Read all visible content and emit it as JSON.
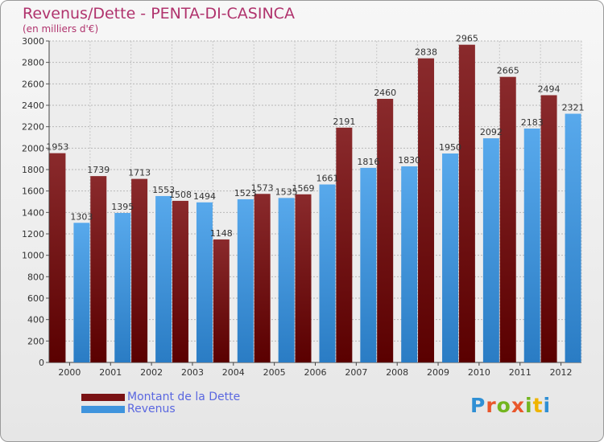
{
  "title": "Revenus/Dette - PENTA-DI-CASINCA",
  "subtitle": "(en milliers d'€)",
  "brand": {
    "letters": [
      "P",
      "r",
      "o",
      "x",
      "i",
      "t",
      "i"
    ],
    "colors": [
      "#2f8fd4",
      "#e9562b",
      "#73b51f",
      "#e9562b",
      "#73b51f",
      "#f0b400",
      "#2f8fd4"
    ]
  },
  "legend": {
    "debt_label": "Montant de la Dette",
    "revenue_label": "Revenus",
    "debt_color": "#7a1214",
    "revenue_color": "#3f94dd"
  },
  "chart_data": {
    "type": "bar",
    "categories": [
      "2000",
      "2001",
      "2002",
      "2003",
      "2004",
      "2005",
      "2006",
      "2007",
      "2008",
      "2009",
      "2010",
      "2011",
      "2012"
    ],
    "series": [
      {
        "name": "Montant de la Dette",
        "color": "#7a1214",
        "values": [
          1953,
          1739,
          1713,
          1508,
          1148,
          1573,
          1569,
          2191,
          2460,
          2838,
          2965,
          2665,
          2494
        ]
      },
      {
        "name": "Revenus",
        "color": "#3f94dd",
        "values": [
          1303,
          1395,
          1553,
          1494,
          1523,
          1535,
          1661,
          1816,
          1830,
          1950,
          2092,
          2183,
          2321
        ]
      }
    ],
    "ylim": [
      0,
      3000
    ],
    "yticks": [
      0,
      200,
      400,
      600,
      800,
      1000,
      1200,
      1400,
      1600,
      1800,
      2000,
      2200,
      2400,
      2600,
      2800,
      3000
    ],
    "grid": true,
    "legend_position": "bottom-left"
  }
}
